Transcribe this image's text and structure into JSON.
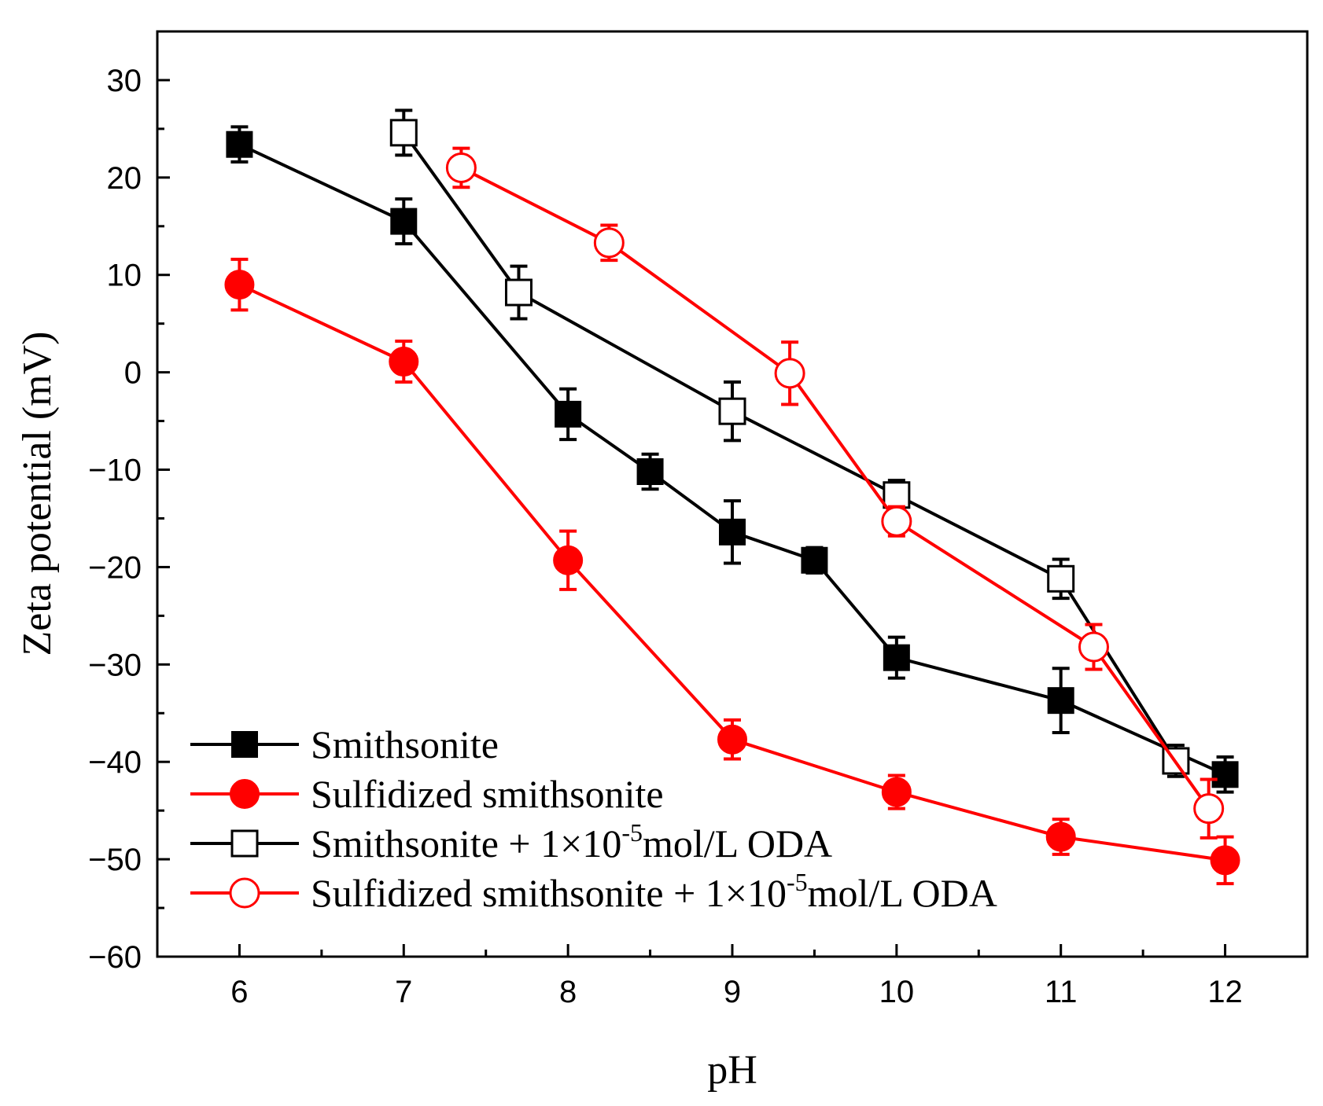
{
  "chart_data": {
    "type": "line",
    "title": "",
    "xlabel": "pH",
    "ylabel": "Zeta potential (mV)",
    "xlim": [
      5.5,
      12.5
    ],
    "ylim": [
      -60,
      35
    ],
    "xticks": [
      6,
      7,
      8,
      9,
      10,
      11,
      12
    ],
    "xtick_labels": [
      "6",
      "7",
      "8",
      "9",
      "10",
      "11",
      "12"
    ],
    "yticks": [
      30,
      20,
      10,
      0,
      -10,
      -20,
      -30,
      -40,
      -50,
      -60
    ],
    "ytick_labels": [
      "30",
      "20",
      "10",
      "0",
      "−10",
      "−20",
      "−30",
      "−40",
      "−50",
      "−60"
    ],
    "grid": false,
    "legend_position": "bottom-left",
    "series": [
      {
        "name": "Smithsonite",
        "color": "#000000",
        "marker": "square-filled",
        "x": [
          6,
          7,
          8,
          8.5,
          9,
          9.5,
          10,
          11,
          12
        ],
        "y": [
          23.4,
          15.5,
          -4.3,
          -10.2,
          -16.4,
          -19.3,
          -29.3,
          -33.7,
          -41.3
        ],
        "err": [
          1.8,
          2.3,
          2.6,
          1.8,
          3.2,
          1.3,
          2.1,
          3.3,
          1.8
        ]
      },
      {
        "name": "Sulfidized smithsonite",
        "color": "#ff0000",
        "marker": "circle-filled",
        "x": [
          6,
          7,
          8,
          9,
          10,
          11,
          12
        ],
        "y": [
          9.0,
          1.1,
          -19.3,
          -37.7,
          -43.1,
          -47.7,
          -50.1
        ],
        "err": [
          2.6,
          2.1,
          3.0,
          2.0,
          1.7,
          1.8,
          2.4
        ]
      },
      {
        "name": "Smithsonite + 1×10",
        "name_sup": "-5",
        "name_tail": "mol/L ODA",
        "color": "#000000",
        "marker": "square-open",
        "x": [
          7,
          7.7,
          9,
          10,
          11,
          11.7
        ],
        "y": [
          24.6,
          8.2,
          -4.0,
          -12.6,
          -21.2,
          -39.9
        ],
        "err": [
          2.3,
          2.7,
          3.0,
          1.5,
          2.0,
          1.6
        ]
      },
      {
        "name": "Sulfidized smithsonite + 1×10",
        "name_sup": "-5",
        "name_tail": "mol/L ODA",
        "color": "#ff0000",
        "marker": "circle-open",
        "x": [
          7.35,
          8.25,
          9.35,
          10,
          11.2,
          11.9
        ],
        "y": [
          21.0,
          13.3,
          -0.1,
          -15.3,
          -28.2,
          -44.8
        ],
        "err": [
          2.0,
          1.8,
          3.2,
          1.5,
          2.3,
          3.0
        ]
      }
    ]
  }
}
